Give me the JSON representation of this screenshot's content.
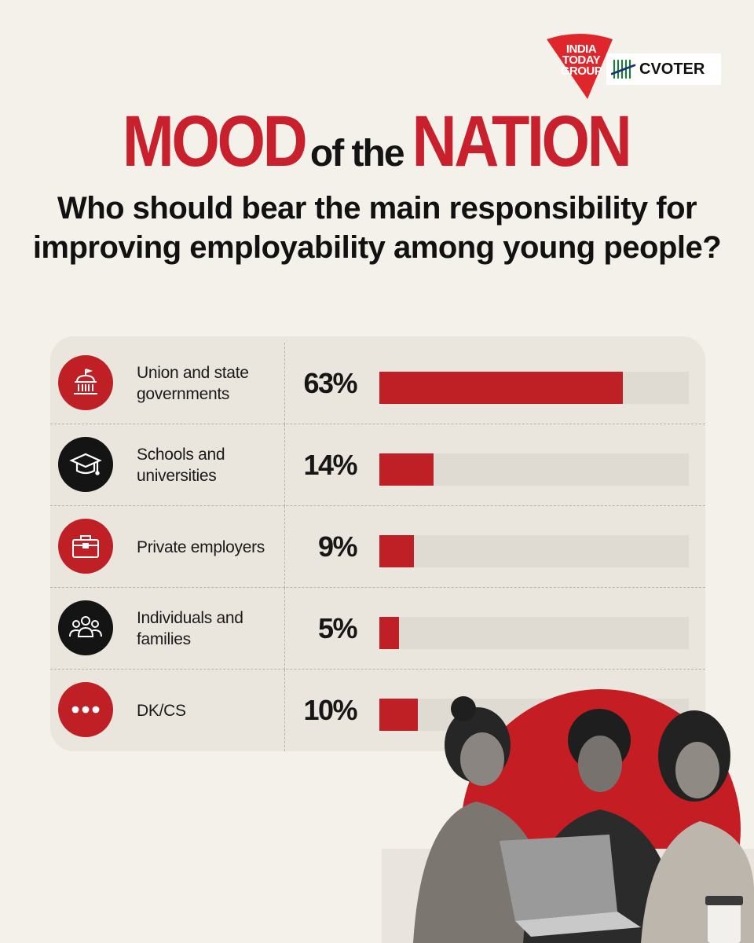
{
  "brand": {
    "publisher_logo_text": "INDIA TODAY GROUP",
    "partner_logo_text": "CVOTER"
  },
  "headline": {
    "word1": "MOOD",
    "word2": "of the",
    "word3": "NATION"
  },
  "question": "Who should bear the main responsibility for improving employability among young people?",
  "colors": {
    "accent_red": "#be2026",
    "dark_icon": "#141414",
    "background": "#f4f1ea",
    "panel": "#ebe6dd",
    "track": "#dfdad2"
  },
  "chart_data": {
    "type": "bar",
    "orientation": "horizontal",
    "categories": [
      "Union and state governments",
      "Schools and universities",
      "Private employers",
      "Individuals and families",
      "DK/CS"
    ],
    "values": [
      63,
      14,
      9,
      5,
      10
    ],
    "value_labels": [
      "63%",
      "14%",
      "9%",
      "5%",
      "10%"
    ],
    "unit": "%",
    "xlim": [
      0,
      80
    ],
    "icons": [
      "government-building-icon",
      "graduation-cap-icon",
      "briefcase-icon",
      "people-group-icon",
      "more-dots-icon"
    ],
    "icon_colors": [
      "#be2026",
      "#141414",
      "#be2026",
      "#141414",
      "#be2026"
    ]
  }
}
